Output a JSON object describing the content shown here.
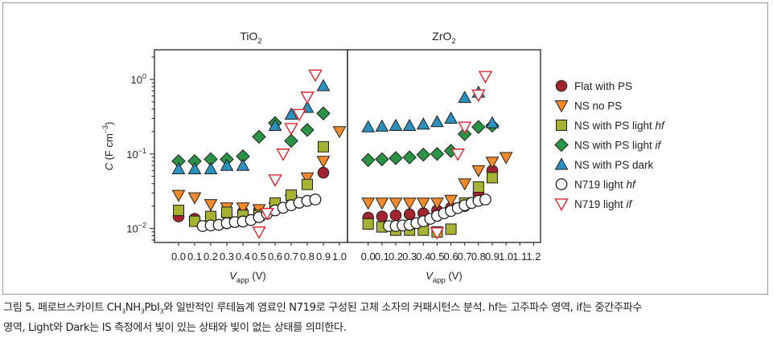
{
  "chart_data": [
    {
      "type": "scatter",
      "title": "TiO2",
      "title_main": "TiO",
      "title_sub": "2",
      "xlabel_main": "V",
      "xlabel_sub": "app",
      "xlabel_unit": " (V)",
      "ylabel_italic": "C",
      "ylabel_rest": " (F cm",
      "ylabel_sup": "−3",
      "ylabel_close": ")",
      "y_scale": "log",
      "xlim": [
        -0.15,
        1.05
      ],
      "ylim": [
        0.0065,
        2.5
      ],
      "xticks": [
        "0.0",
        "0.1",
        "0.2",
        "0.3",
        "0.4",
        "0.5",
        "0.6",
        "0.7",
        "0.8",
        "0.9",
        "1.0"
      ],
      "yticks": [
        {
          "main": "10",
          "sup": "0",
          "value": 1
        },
        {
          "main": "10",
          "sup": "−1",
          "value": 0.1
        },
        {
          "main": "10",
          "sup": "−2",
          "value": 0.01
        }
      ],
      "series": [
        {
          "name": "Flat with PS",
          "marker": "circle",
          "color": "#a2242f",
          "x": [
            0,
            0.1,
            0.2,
            0.3,
            0.4,
            0.5,
            0.6,
            0.7,
            0.9
          ],
          "y": [
            0.0145,
            0.0135,
            0.0145,
            0.0155,
            0.0165,
            0.0175,
            0.019,
            0.021,
            0.056
          ]
        },
        {
          "name": "NS no PS",
          "marker": "triangle-down",
          "color": "#ef8b2c",
          "x": [
            0,
            0.1,
            0.2,
            0.3,
            0.4,
            0.5,
            0.6,
            0.7,
            0.8,
            0.9,
            1.0
          ],
          "y": [
            0.028,
            0.026,
            0.021,
            0.019,
            0.019,
            0.018,
            0.019,
            0.024,
            0.048,
            0.08,
            0.2
          ]
        },
        {
          "name": "NS with PS light hf",
          "marker": "square",
          "color": "#a6b233",
          "x": [
            0,
            0.1,
            0.2,
            0.3,
            0.4,
            0.5,
            0.6,
            0.7,
            0.8,
            0.9
          ],
          "y": [
            0.0175,
            0.0125,
            0.0145,
            0.0165,
            0.015,
            0.015,
            0.022,
            0.028,
            0.039,
            0.125
          ]
        },
        {
          "name": "NS with PS light if",
          "marker": "diamond",
          "color": "#2a9345",
          "x": [
            0,
            0.1,
            0.2,
            0.3,
            0.4,
            0.5,
            0.6,
            0.7,
            0.8,
            0.9
          ],
          "y": [
            0.08,
            0.08,
            0.085,
            0.085,
            0.093,
            0.17,
            0.26,
            0.15,
            0.21,
            0.35
          ]
        },
        {
          "name": "NS with PS dark",
          "marker": "triangle-up",
          "color": "#2c91bd",
          "x": [
            0,
            0.1,
            0.2,
            0.3,
            0.4,
            0.6,
            0.7,
            0.8,
            0.9
          ],
          "y": [
            0.063,
            0.063,
            0.063,
            0.07,
            0.07,
            0.24,
            0.34,
            0.42,
            0.82
          ]
        },
        {
          "name": "N719 light hf",
          "marker": "circle-open",
          "color": "#231f20",
          "x": [
            0.15,
            0.2,
            0.25,
            0.3,
            0.35,
            0.4,
            0.45,
            0.5,
            0.55,
            0.6,
            0.65,
            0.7,
            0.75,
            0.8,
            0.85
          ],
          "y": [
            0.0108,
            0.011,
            0.0112,
            0.0118,
            0.0122,
            0.0124,
            0.013,
            0.0142,
            0.0158,
            0.0175,
            0.019,
            0.0205,
            0.0222,
            0.0235,
            0.0245
          ]
        },
        {
          "name": "N719 light if",
          "marker": "triangle-down-open",
          "color": "#d92630",
          "x": [
            0.5,
            0.55,
            0.6,
            0.65,
            0.7,
            0.75,
            0.8,
            0.85
          ],
          "y": [
            0.009,
            0.016,
            0.045,
            0.1,
            0.22,
            0.34,
            0.58,
            1.15
          ]
        }
      ]
    },
    {
      "type": "scatter",
      "title": "ZrO2",
      "title_main": "ZrO",
      "title_sub": "2",
      "xlabel_main": "V",
      "xlabel_sub": "app",
      "xlabel_unit": " (V)",
      "y_scale": "log",
      "xlim": [
        -0.15,
        1.25
      ],
      "ylim": [
        0.0065,
        2.5
      ],
      "xticks": [
        "0.0",
        "0.1",
        "0.2",
        "0.3",
        "0.4",
        "0.5",
        "0.6",
        "0.7",
        "0.8",
        "0.9",
        "1.0",
        "1.1",
        "1.2"
      ],
      "series": [
        {
          "name": "Flat with PS",
          "marker": "circle",
          "color": "#a2242f",
          "x": [
            0,
            0.1,
            0.2,
            0.3,
            0.4,
            0.5,
            0.6,
            0.7,
            0.8,
            0.9
          ],
          "y": [
            0.014,
            0.0145,
            0.015,
            0.0155,
            0.016,
            0.0175,
            0.019,
            0.02,
            0.029,
            0.06
          ]
        },
        {
          "name": "NS no PS",
          "marker": "triangle-down",
          "color": "#ef8b2c",
          "x": [
            0,
            0.1,
            0.2,
            0.3,
            0.4,
            0.5,
            0.6,
            0.7,
            0.8,
            0.9,
            1.0
          ],
          "y": [
            0.022,
            0.022,
            0.022,
            0.022,
            0.022,
            0.022,
            0.024,
            0.04,
            0.06,
            0.078,
            0.09
          ]
        },
        {
          "name": "NS with PS light hf",
          "marker": "square",
          "color": "#a6b233",
          "x": [
            0,
            0.1,
            0.2,
            0.3,
            0.4,
            0.5,
            0.6,
            0.7,
            0.8,
            0.9
          ],
          "y": [
            0.0115,
            0.0105,
            0.0095,
            0.0095,
            0.0095,
            0.009,
            0.0098,
            0.022,
            0.036,
            0.048
          ]
        },
        {
          "name": "NS with PS light if",
          "marker": "diamond",
          "color": "#2a9345",
          "x": [
            0,
            0.1,
            0.2,
            0.3,
            0.4,
            0.5,
            0.6,
            0.7,
            0.8,
            0.9
          ],
          "y": [
            0.083,
            0.085,
            0.088,
            0.09,
            0.098,
            0.1,
            0.11,
            0.185,
            0.23,
            0.24
          ]
        },
        {
          "name": "NS with PS dark",
          "marker": "triangle-up",
          "color": "#2c91bd",
          "x": [
            0,
            0.1,
            0.2,
            0.3,
            0.4,
            0.5,
            0.6,
            0.7,
            0.8,
            0.9
          ],
          "y": [
            0.23,
            0.235,
            0.24,
            0.24,
            0.25,
            0.27,
            0.3,
            0.57,
            0.67,
            0.26
          ]
        },
        {
          "name": "N719 light hf",
          "marker": "circle-open",
          "color": "#231f20",
          "x": [
            0.15,
            0.2,
            0.25,
            0.3,
            0.35,
            0.4,
            0.45,
            0.5,
            0.55,
            0.6,
            0.65,
            0.7,
            0.75,
            0.8,
            0.85
          ],
          "y": [
            0.0108,
            0.0108,
            0.011,
            0.0112,
            0.0118,
            0.0125,
            0.0135,
            0.0148,
            0.016,
            0.0172,
            0.0188,
            0.0205,
            0.022,
            0.0235,
            0.0245
          ]
        },
        {
          "name": "N719 light if",
          "marker": "triangle-down-open",
          "color": "#d92630",
          "x": [
            0.5,
            0.65,
            0.7,
            0.8,
            0.85
          ],
          "y": [
            0.0088,
            0.1,
            0.23,
            0.62,
            1.1
          ]
        }
      ]
    }
  ],
  "legend": {
    "placement": "right",
    "items": [
      {
        "marker": "circle",
        "color": "#a2242f",
        "text": "Flat with PS",
        "italic": ""
      },
      {
        "marker": "triangle-down",
        "color": "#ef8b2c",
        "text": "NS no PS",
        "italic": ""
      },
      {
        "marker": "square",
        "color": "#a6b233",
        "text": "NS with PS light ",
        "italic": "hf"
      },
      {
        "marker": "diamond",
        "color": "#2a9345",
        "text": "NS with PS light ",
        "italic": "if"
      },
      {
        "marker": "triangle-up",
        "color": "#2c91bd",
        "text": "NS with PS dark",
        "italic": ""
      },
      {
        "marker": "circle-open",
        "color": "#231f20",
        "text": "N719 light ",
        "italic": "hf"
      },
      {
        "marker": "triangle-down-open",
        "color": "#d92630",
        "text": "N719 light ",
        "italic": "if"
      }
    ]
  },
  "caption": {
    "line1_a": "그림 5. 페로브스카이트 CH",
    "sub1": "3",
    "line1_b": "NH",
    "sub2": "3",
    "line1_c": "PbI",
    "sub3": "3",
    "line1_d": "와 일반적인 루테늄계 염료인 N719로 구성된 고체 소자의 커패시턴스 분석. hf는 고주파수 영역, if는 중간주파수",
    "line2": "영역, Light와 Dark는 IS 측정에서 빛이 있는 상태와 빛이 없는 상태를 의미한다."
  }
}
